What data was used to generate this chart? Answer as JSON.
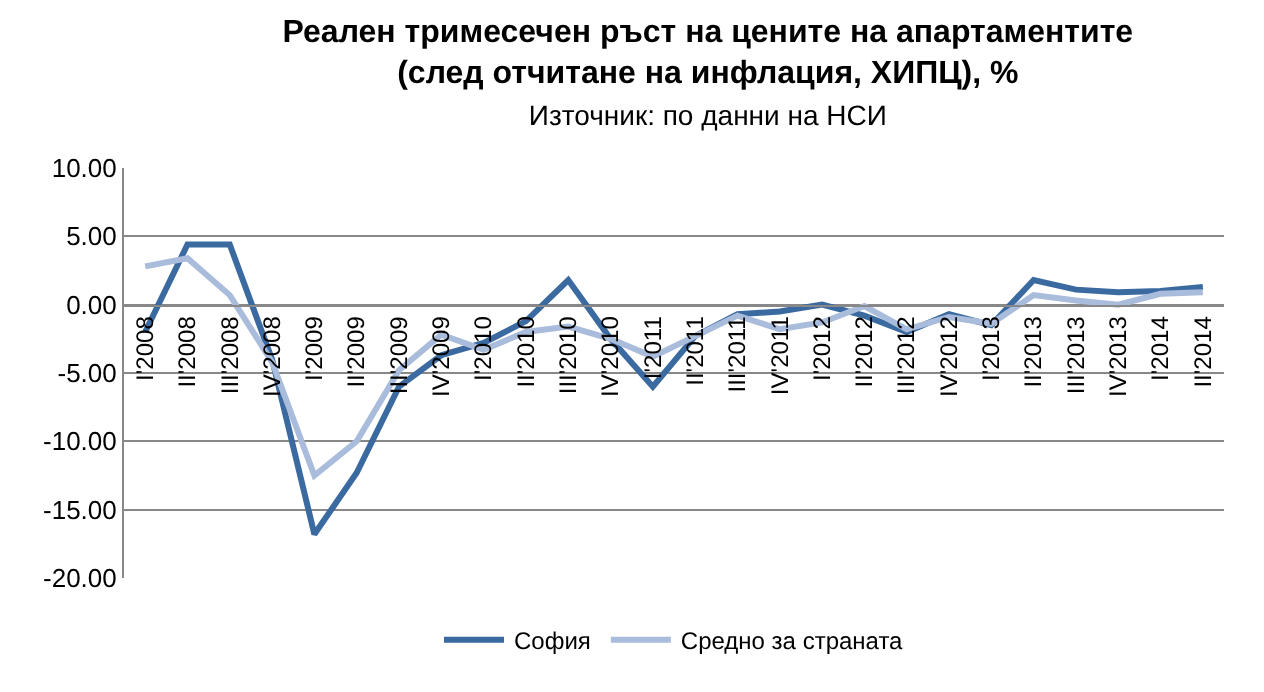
{
  "chart_data": {
    "type": "line",
    "title": "Реален тримесечен ръст на цените на апартаментите\n(след отчитане на инфлация, ХИПЦ), %",
    "subtitle": "Източник: по данни на НСИ",
    "categories": [
      "I'2008",
      "II'2008",
      "III'2008",
      "IV'2008",
      "I'2009",
      "II'2009",
      "III'2009",
      "IV'2009",
      "I'2010",
      "II'2010",
      "III'2010",
      "IV'2010",
      "I'2011",
      "II'2011",
      "III'2011",
      "IV'2011",
      "I'2012",
      "II'2012",
      "III'2012",
      "IV'2012",
      "I'2013",
      "II'2013",
      "III'2013",
      "IV'2013",
      "I'2014",
      "II'2014"
    ],
    "series": [
      {
        "name": "София",
        "color": "#3a6aa0",
        "values": [
          -2.0,
          4.4,
          4.4,
          -4.0,
          -16.8,
          -12.3,
          -6.0,
          -3.7,
          -2.8,
          -1.2,
          1.8,
          -2.5,
          -6.0,
          -2.3,
          -0.7,
          -0.5,
          0.0,
          -0.8,
          -2.0,
          -0.7,
          -1.5,
          1.8,
          1.1,
          0.9,
          1.0,
          1.3
        ]
      },
      {
        "name": "Средно за страната",
        "color": "#a9bcdb",
        "values": [
          2.8,
          3.4,
          0.7,
          -4.2,
          -12.5,
          -10.0,
          -4.8,
          -2.2,
          -3.3,
          -2.0,
          -1.6,
          -2.5,
          -3.8,
          -2.3,
          -0.8,
          -1.8,
          -1.3,
          -0.1,
          -1.8,
          -0.9,
          -1.4,
          0.7,
          0.3,
          0.0,
          0.8,
          0.9
        ]
      }
    ],
    "ylim": [
      -20,
      10
    ],
    "yticks": [
      {
        "value": -20,
        "label": "-20.00"
      },
      {
        "value": -15,
        "label": "-15.00"
      },
      {
        "value": -10,
        "label": "-10.00"
      },
      {
        "value": -5,
        "label": "-5.00"
      },
      {
        "value": 0,
        "label": "0.00"
      },
      {
        "value": 5,
        "label": "5.00"
      },
      {
        "value": 10,
        "label": "10.00"
      }
    ],
    "grid": "y",
    "legend": "bottom",
    "marker": "none",
    "line_style": "solid"
  }
}
